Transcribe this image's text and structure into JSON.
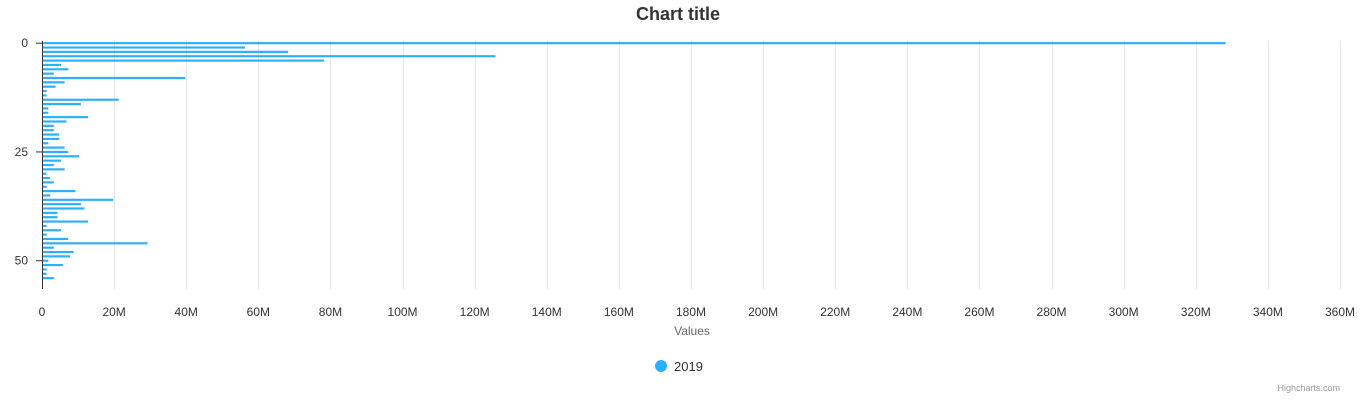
{
  "chart_data": {
    "type": "bar",
    "orientation": "horizontal",
    "title": "Chart title",
    "xlabel": "Values",
    "ylabel": "",
    "xlim": [
      0,
      360000000
    ],
    "ylim": [
      -0.5,
      56.5
    ],
    "x_ticks": [
      0,
      20000000,
      40000000,
      60000000,
      80000000,
      100000000,
      120000000,
      140000000,
      160000000,
      180000000,
      200000000,
      220000000,
      240000000,
      260000000,
      280000000,
      300000000,
      320000000,
      340000000,
      360000000
    ],
    "x_tick_labels": [
      "0",
      "20M",
      "40M",
      "60M",
      "80M",
      "100M",
      "120M",
      "140M",
      "160M",
      "180M",
      "200M",
      "220M",
      "240M",
      "260M",
      "280M",
      "300M",
      "320M",
      "340M",
      "360M"
    ],
    "y_ticks": [
      0,
      25,
      50
    ],
    "y_tick_labels": [
      "0",
      "25",
      "50"
    ],
    "grid": true,
    "legend_position": "bottom-center",
    "color": "#2caffe",
    "series": [
      {
        "name": "2019",
        "values": [
          328000000,
          56000000,
          68000000,
          125500000,
          78000000,
          5000000,
          7000000,
          3000000,
          39500000,
          6000000,
          3500000,
          1000000,
          1000000,
          21000000,
          10500000,
          1500000,
          1500000,
          12500000,
          6500000,
          3000000,
          3000000,
          4500000,
          4500000,
          1500000,
          6000000,
          7000000,
          10000000,
          5000000,
          3000000,
          6000000,
          1000000,
          2000000,
          3000000,
          1000000,
          9000000,
          2000000,
          19500000,
          10500000,
          11500000,
          4000000,
          4000000,
          12500000,
          1000000,
          5000000,
          1000000,
          7000000,
          29000000,
          3000000,
          8500000,
          7500000,
          1500000,
          5500000,
          1000000,
          1000000,
          3000000
        ]
      }
    ],
    "credits": "Highcharts.com"
  }
}
